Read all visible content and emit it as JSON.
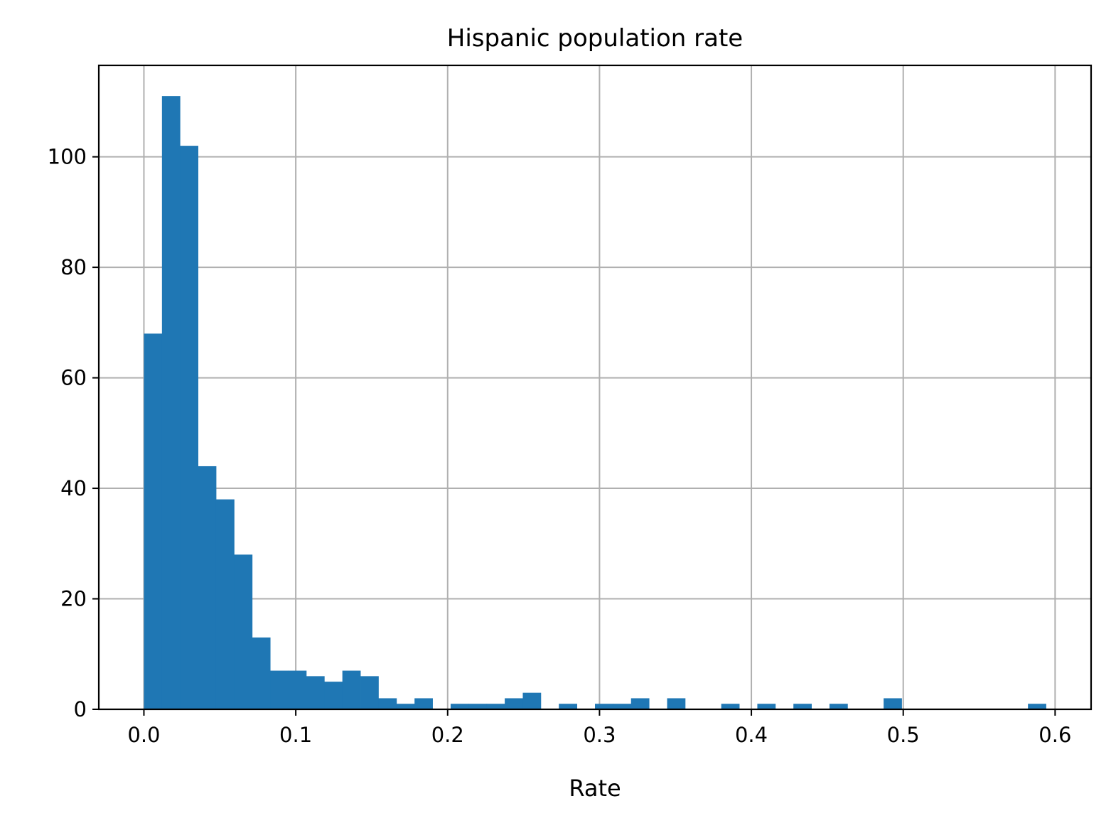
{
  "chart_data": {
    "type": "bar",
    "title": "Hispanic population rate",
    "xlabel": "Rate",
    "ylabel": "",
    "bar_color": "#1f77b4",
    "grid_color": "#b0b0b0",
    "grid": true,
    "xlim": [
      -0.0297,
      0.6237
    ],
    "ylim": [
      0,
      116.55
    ],
    "xticks": [
      0.0,
      0.1,
      0.2,
      0.3,
      0.4,
      0.5,
      0.6
    ],
    "xtick_labels": [
      "0.0",
      "0.1",
      "0.2",
      "0.3",
      "0.4",
      "0.5",
      "0.6"
    ],
    "yticks": [
      0,
      20,
      40,
      60,
      80,
      100
    ],
    "ytick_labels": [
      "0",
      "20",
      "40",
      "60",
      "80",
      "100"
    ],
    "bin_start": 0.0,
    "bin_width": 0.01188,
    "counts": [
      68,
      111,
      102,
      44,
      38,
      28,
      13,
      7,
      7,
      6,
      5,
      7,
      6,
      2,
      1,
      2,
      0,
      1,
      1,
      1,
      2,
      3,
      0,
      1,
      0,
      1,
      1,
      2,
      0,
      2,
      0,
      0,
      1,
      0,
      1,
      0,
      1,
      0,
      1,
      0,
      0,
      2,
      0,
      0,
      0,
      0,
      0,
      0,
      0,
      1
    ]
  }
}
